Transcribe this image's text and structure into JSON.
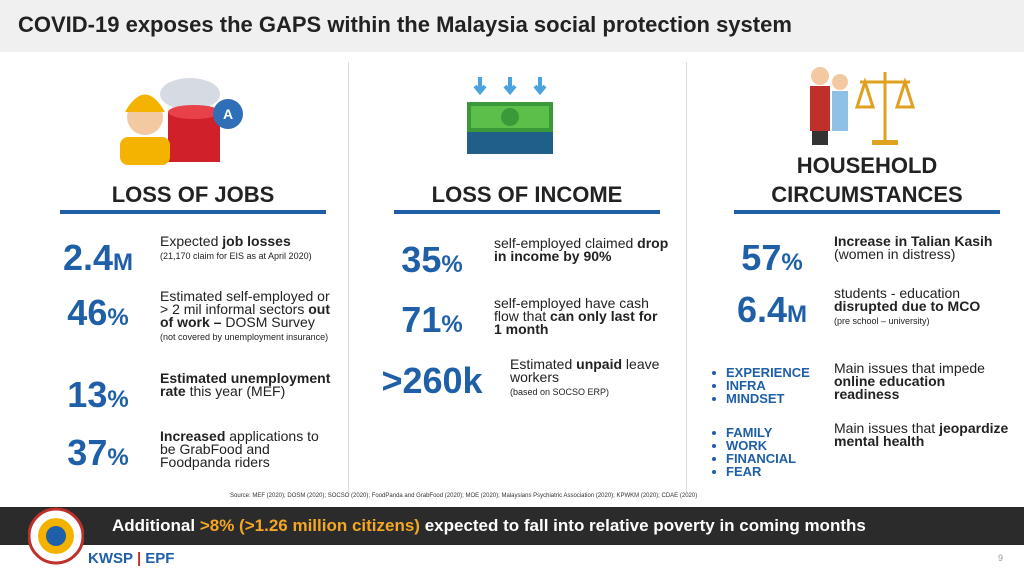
{
  "title": "COVID-19 exposes the GAPS within the Malaysia social protection system",
  "columns": [
    {
      "heading": [
        "LOSS OF JOBS"
      ],
      "items": [
        {
          "value": "2.4",
          "unit": "M",
          "parts": [
            {
              "text": "Expected "
            },
            {
              "text": "job losses",
              "bold": true
            }
          ],
          "note": "(21,170 claim for EIS as at April 2020)"
        },
        {
          "value": "46",
          "unit": "%",
          "parts": [
            {
              "text": "Estimated self-employed or > 2 mil informal sectors "
            },
            {
              "text": "out of work –",
              "bold": true
            },
            {
              "text": " DOSM Survey"
            }
          ],
          "note": "(not covered by unemployment insurance)"
        },
        {
          "value": "13",
          "unit": "%",
          "parts": [
            {
              "text": "Estimated unemployment rate",
              "bold": true
            },
            {
              "text": " this year (MEF)"
            }
          ]
        },
        {
          "value": "37",
          "unit": "%",
          "parts": [
            {
              "text": "Increased",
              "bold": true
            },
            {
              "text": " applications to be GrabFood and Foodpanda riders"
            }
          ]
        }
      ]
    },
    {
      "heading": [
        "LOSS OF INCOME"
      ],
      "items": [
        {
          "value": "35",
          "unit": "%",
          "parts": [
            {
              "text": "self-employed claimed "
            },
            {
              "text": "drop in income by 90%",
              "bold": true
            }
          ]
        },
        {
          "value": "71",
          "unit": "%",
          "parts": [
            {
              "text": "self-employed have cash flow that "
            },
            {
              "text": "can only last for 1 month",
              "bold": true
            }
          ]
        },
        {
          "value": ">260k",
          "parts": [
            {
              "text": "Estimated "
            },
            {
              "text": "unpaid",
              "bold": true
            },
            {
              "text": " leave workers"
            }
          ],
          "note": "(based on SOCSO ERP)"
        }
      ]
    },
    {
      "heading": [
        "HOUSEHOLD",
        "CIRCUMSTANCES"
      ],
      "items": [
        {
          "value": "57",
          "unit": "%",
          "parts": [
            {
              "text": "Increase in Talian Kasih",
              "bold": true
            },
            {
              "text": " (women in distress)"
            }
          ]
        },
        {
          "value": "6.4",
          "unit": "M",
          "parts": [
            {
              "text": "students - education "
            },
            {
              "text": "disrupted due to MCO",
              "bold": true
            }
          ],
          "note": "(pre school – university)"
        },
        {
          "bullets": [
            "EXPERIENCE",
            "INFRA",
            "MINDSET"
          ],
          "parts": [
            {
              "text": "Main issues that impede "
            },
            {
              "text": "online education readiness",
              "bold": true
            }
          ]
        },
        {
          "bullets": [
            "FAMILY",
            "WORK",
            "FINANCIAL",
            "FEAR"
          ],
          "parts": [
            {
              "text": "Main issues that "
            },
            {
              "text": "jeopardize mental health",
              "bold": true
            }
          ]
        }
      ]
    }
  ],
  "source": "Source: MEF (2020); DOSM (2020); SOCSO (2020); FoodPanda and GrabFood (2020); MOE (2020); Malaysians Psychiatric Association (2020); KPWKM (2020); CDAE (2020)",
  "banner": [
    {
      "text": "Additional "
    },
    {
      "text": ">8% (>1.26 million citizens)",
      "highlight": true
    },
    {
      "text": " expected to fall into relative poverty in coming months"
    }
  ],
  "logo": {
    "left": "KWSP",
    "right": "EPF"
  },
  "page_number": "9"
}
